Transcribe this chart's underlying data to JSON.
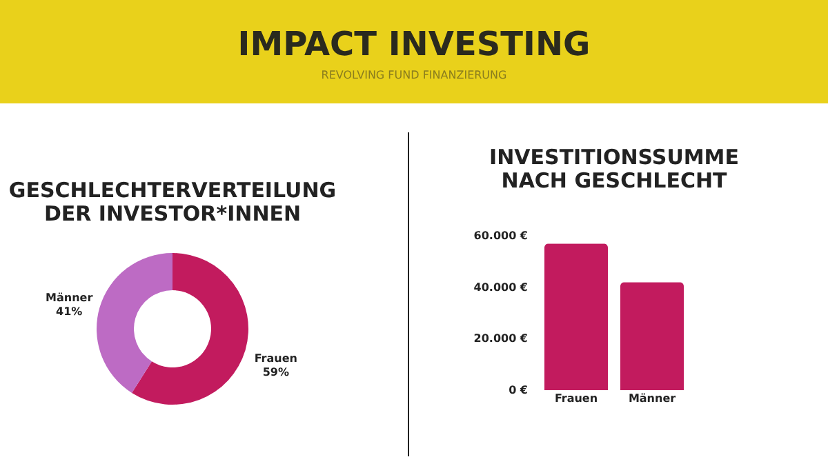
{
  "chart_data": [
    {
      "type": "donut",
      "title": "GESCHLECHTERVERTEILUNG DER INVESTOR*INNEN",
      "annotations": [
        "IMPACT INVESTING",
        "REVOLVING FUND FINANZIERUNG"
      ],
      "categories": [
        "Frauen",
        "Männer"
      ],
      "values": [
        59,
        41
      ],
      "colors": [
        "#c21b5e",
        "#bd6bc4"
      ],
      "value_labels": [
        "59%",
        "41%"
      ]
    },
    {
      "type": "bar",
      "title": "INVESTITIONSSUMME NACH GESCHLECHT",
      "categories": [
        "Frauen",
        "Männer"
      ],
      "values": [
        57000,
        42000
      ],
      "color": "#c21b5e",
      "ylim": [
        0,
        60000
      ],
      "yticks": [
        {
          "value": 0,
          "label": "0 €"
        },
        {
          "value": 20000,
          "label": "20.000 €"
        },
        {
          "value": 40000,
          "label": "40.000 €"
        },
        {
          "value": 60000,
          "label": "60.000 €"
        }
      ],
      "grid": false
    }
  ]
}
